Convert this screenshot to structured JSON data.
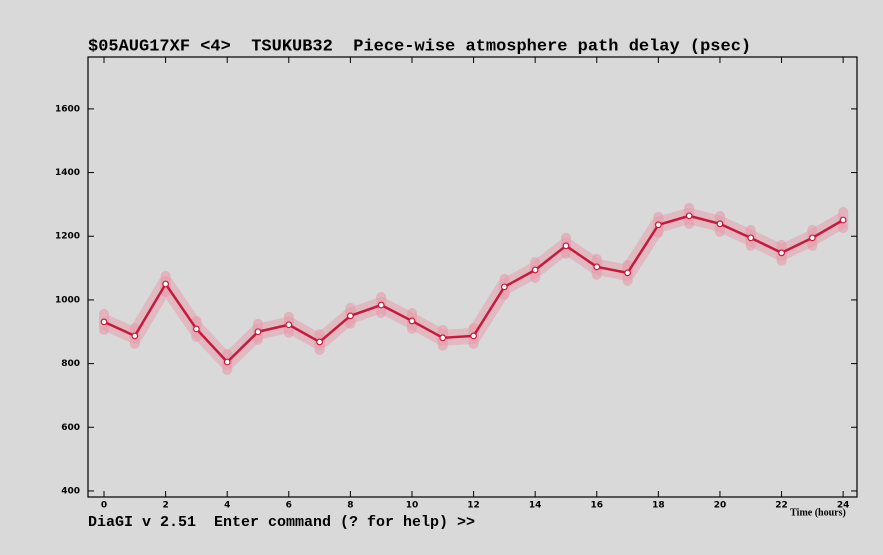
{
  "chart_data": {
    "type": "line",
    "title": "$05AUG17XF <4>  TSUKUB32  Piece-wise atmosphere path delay (psec)",
    "x_label": "Time (hours)",
    "prompt": "DiaGI v 2.51  Enter command (? for help) >>",
    "x": [
      0,
      1,
      2,
      3,
      4,
      5,
      6,
      7,
      8,
      9,
      10,
      11,
      12,
      13,
      14,
      15,
      16,
      17,
      18,
      19,
      20,
      21,
      22,
      23,
      24
    ],
    "series": [
      {
        "color": "#c8193c",
        "band_color": "#e89aaa",
        "values": [
          931,
          887,
          1050,
          909,
          805,
          900,
          922,
          868,
          950,
          984,
          934,
          881,
          887,
          1041,
          1094,
          1170,
          1104,
          1085,
          1236,
          1264,
          1239,
          1195,
          1148,
          1195,
          1251
        ],
        "errors": [
          25,
          25,
          25,
          25,
          25,
          25,
          25,
          25,
          25,
          25,
          25,
          25,
          25,
          25,
          25,
          25,
          25,
          25,
          25,
          25,
          25,
          25,
          25,
          25,
          25
        ]
      }
    ],
    "xlim": [
      -0.52,
      24.45
    ],
    "ylim": [
      381,
      1763
    ],
    "xticks": [
      0,
      2,
      4,
      6,
      8,
      10,
      12,
      14,
      16,
      18,
      20,
      22,
      24
    ],
    "yticks": [
      400,
      600,
      800,
      1000,
      1200,
      1400,
      1600
    ]
  }
}
